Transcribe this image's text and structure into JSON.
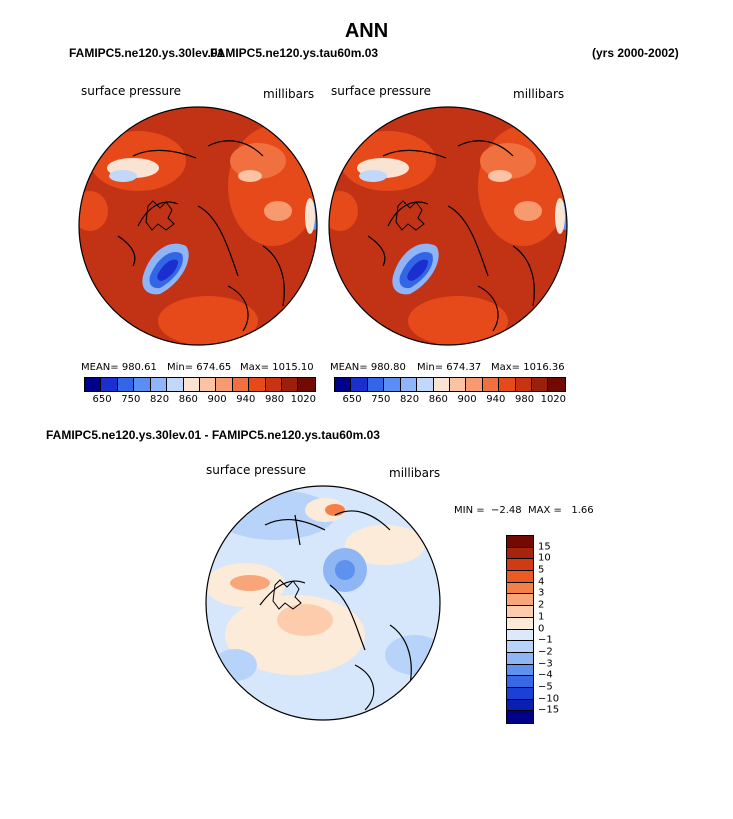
{
  "chart_data": [
    {
      "type": "heatmap",
      "title": "ANN",
      "case": "FAMIPC5.ne120.ys.30lev.01",
      "overlap_case": "FAMIPC5.ne120.ys.tau60m.03",
      "years": "(yrs 2000-2002)",
      "variable": "surface pressure",
      "units": "millibars",
      "stats": {
        "mean_label": "MEAN= 980.61",
        "min_label": "Min= 674.65",
        "max_label": "Max= 1015.10",
        "mean": 980.61,
        "min": 674.65,
        "max": 1015.1
      },
      "colorbar_labels": [
        "650",
        "750",
        "820",
        "860",
        "900",
        "940",
        "980",
        "1020"
      ]
    },
    {
      "type": "heatmap",
      "case": "FAMIPC5.ne120.ys.tau60m.03",
      "variable": "surface pressure",
      "units": "millibars",
      "stats": {
        "mean_label": "MEAN= 980.80",
        "min_label": "Min= 674.37",
        "max_label": "Max= 1016.36",
        "mean": 980.8,
        "min": 674.37,
        "max": 1016.36
      },
      "colorbar_labels": [
        "650",
        "750",
        "820",
        "860",
        "900",
        "940",
        "980",
        "1020"
      ]
    },
    {
      "type": "heatmap",
      "title": "FAMIPC5.ne120.ys.30lev.01 - FAMIPC5.ne120.ys.tau60m.03",
      "variable": "surface pressure",
      "units": "millibars",
      "stats": {
        "minmax_label": "MIN =  −2.48  MAX =   1.66",
        "min": -2.48,
        "max": 1.66
      },
      "colorbar_labels": [
        "15",
        "10",
        "5",
        "4",
        "3",
        "2",
        "1",
        "0",
        "−1",
        "−2",
        "−3",
        "−4",
        "−5",
        "−10",
        "−15"
      ]
    }
  ],
  "colors": {
    "abs_scale": [
      "#00008b",
      "#1a2fcd",
      "#3366e6",
      "#5b8ef2",
      "#8fb4f7",
      "#c2d8fb",
      "#f9e4d4",
      "#fbc2a3",
      "#f79a70",
      "#f0713f",
      "#e64a1b",
      "#c83413",
      "#9c1f0c",
      "#700a03"
    ],
    "diff_scale": [
      "#700a03",
      "#a6230e",
      "#d13b14",
      "#ed5a20",
      "#f47f48",
      "#f9a57a",
      "#fcccad",
      "#fcebd9",
      "#dbe9fb",
      "#b8d3f9",
      "#8eb6f4",
      "#5f92ef",
      "#3668e8",
      "#1c3fd6",
      "#0a1eb0",
      "#00008b"
    ],
    "map_bg": "#c23214",
    "diff_bg": "#d6e7fb"
  }
}
